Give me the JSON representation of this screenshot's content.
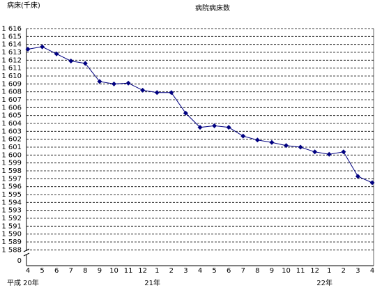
{
  "chart_data": {
    "type": "line",
    "title": "病院病床数",
    "y_label": "病床(千床)",
    "categories": [
      "4",
      "5",
      "6",
      "7",
      "8",
      "9",
      "10",
      "11",
      "12",
      "1",
      "2",
      "3",
      "4",
      "5",
      "6",
      "7",
      "8",
      "9",
      "10",
      "11",
      "12",
      "1",
      "2",
      "3",
      "4"
    ],
    "category_groups": [
      "平成 20年",
      null,
      null,
      null,
      null,
      null,
      null,
      null,
      null,
      "21年",
      null,
      null,
      null,
      null,
      null,
      null,
      null,
      null,
      null,
      null,
      null,
      "22年",
      null,
      null,
      null
    ],
    "series": [
      {
        "name": "病院病床数",
        "color": "#000080",
        "values": [
          1613.4,
          1613.7,
          1612.8,
          1611.9,
          1611.6,
          1609.3,
          1609.0,
          1609.1,
          1608.2,
          1607.9,
          1607.9,
          1605.3,
          1603.5,
          1603.7,
          1603.5,
          1602.4,
          1601.9,
          1601.6,
          1601.2,
          1601.0,
          1600.4,
          1600.1,
          1600.4,
          1597.3,
          1596.5
        ]
      }
    ],
    "ylim": [
      1586,
      1616
    ],
    "yticks": [
      0,
      {
        "value": 1588,
        "label": "1 588"
      },
      {
        "value": 1589,
        "label": "1 589"
      },
      {
        "value": 1590,
        "label": "1 590"
      },
      {
        "value": 1591,
        "label": "1 591"
      },
      {
        "value": 1592,
        "label": "1 592"
      },
      {
        "value": 1593,
        "label": "1 593"
      },
      {
        "value": 1594,
        "label": "1 594"
      },
      {
        "value": 1595,
        "label": "1 595"
      },
      {
        "value": 1596,
        "label": "1 596"
      },
      {
        "value": 1597,
        "label": "1 597"
      },
      {
        "value": 1598,
        "label": "1 598"
      },
      {
        "value": 1599,
        "label": "1 599"
      },
      {
        "value": 1600,
        "label": "1 600"
      },
      {
        "value": 1601,
        "label": "1 601"
      },
      {
        "value": 1602,
        "label": "1 602"
      },
      {
        "value": 1603,
        "label": "1 603"
      },
      {
        "value": 1604,
        "label": "1 604"
      },
      {
        "value": 1605,
        "label": "1 605"
      },
      {
        "value": 1606,
        "label": "1 606"
      },
      {
        "value": 1607,
        "label": "1 607"
      },
      {
        "value": 1608,
        "label": "1 608"
      },
      {
        "value": 1609,
        "label": "1 609"
      },
      {
        "value": 1610,
        "label": "1 610"
      },
      {
        "value": 1611,
        "label": "1 611"
      },
      {
        "value": 1612,
        "label": "1 612"
      },
      {
        "value": 1613,
        "label": "1 613"
      },
      {
        "value": 1614,
        "label": "1 614"
      },
      {
        "value": 1615,
        "label": "1 615"
      },
      {
        "value": 1616,
        "label": "1 616"
      }
    ],
    "grid": true
  }
}
